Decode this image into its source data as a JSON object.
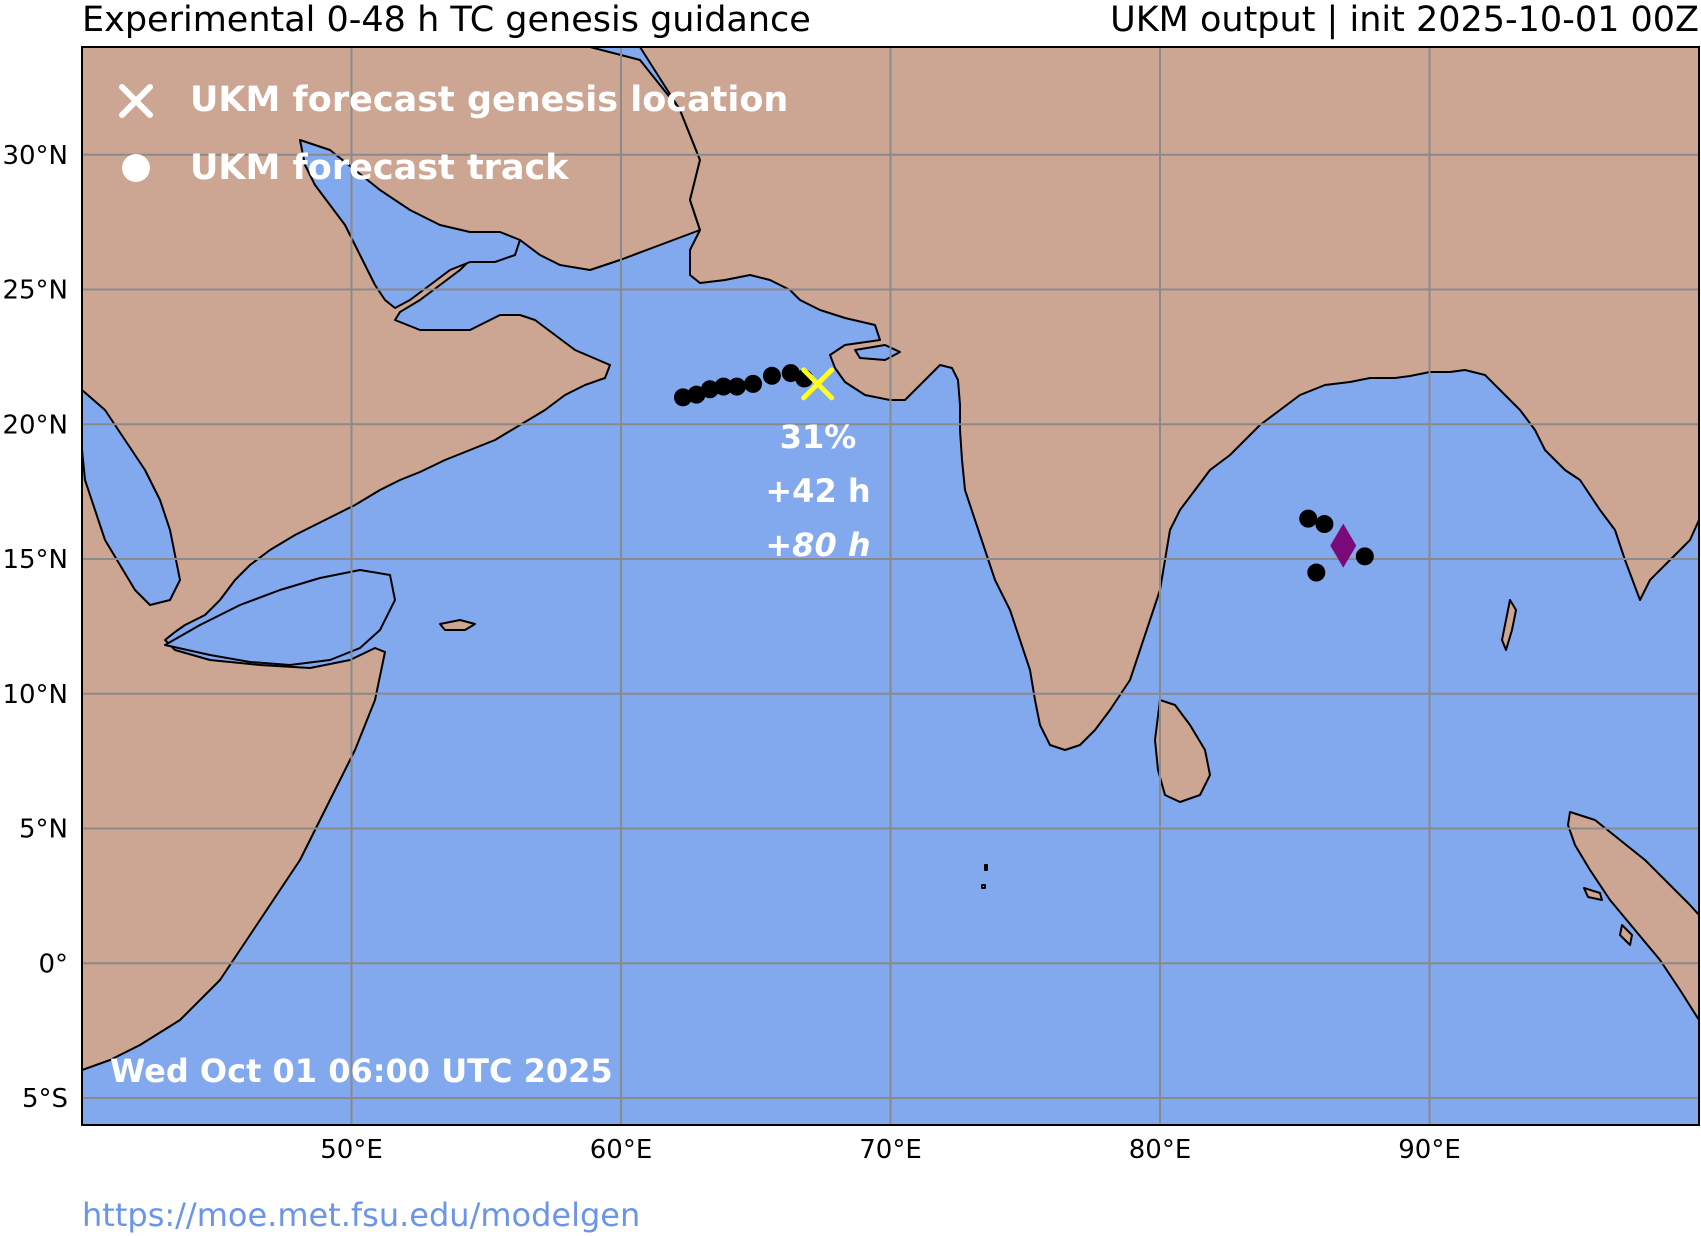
{
  "header": {
    "title_left": "Experimental 0-48 h TC genesis guidance",
    "title_right": "UKM output | init 2025-10-01 00Z"
  },
  "legend": {
    "genesis_label": "UKM forecast genesis location",
    "track_label": "UKM forecast track"
  },
  "timestamp": "Wed Oct 01 06:00 UTC 2025",
  "footer": {
    "url": "https://moe.met.fsu.edu/modelgen"
  },
  "annotation": {
    "probability": "31%",
    "genesis_time": "+42 h",
    "lead_time": "+80 h"
  },
  "colors": {
    "ocean": "#82a8ee",
    "land": "#cca593",
    "grid": "#8a8a8a",
    "genesis_marker": "#ffff1e",
    "track_marker": "#000000",
    "diamond_marker": "#7a0a7a",
    "legend_text": "#ffffff",
    "footer_link": "#6a95e8"
  },
  "axes": {
    "lon_ticks": [
      "50°E",
      "60°E",
      "70°E",
      "80°E",
      "90°E"
    ],
    "lat_ticks": [
      "30°N",
      "25°N",
      "20°N",
      "15°N",
      "10°N",
      "5°N",
      "0°",
      "5°S"
    ],
    "lon_range": [
      40,
      100
    ],
    "lat_range": [
      -6,
      34
    ]
  },
  "chart_data": {
    "type": "scatter",
    "series": [
      {
        "name": "UKM forecast track",
        "x": [
          62.3,
          62.8,
          63.3,
          63.8,
          64.3,
          64.9,
          65.6,
          66.3,
          66.8,
          85.5,
          86.1,
          85.8,
          87.6
        ],
        "y": [
          21.0,
          21.1,
          21.3,
          21.4,
          21.4,
          21.5,
          21.8,
          21.9,
          21.7,
          16.5,
          16.3,
          14.5,
          15.1
        ]
      },
      {
        "name": "UKM forecast genesis location",
        "x": [
          67.3
        ],
        "y": [
          21.5
        ]
      }
    ],
    "extra_markers": [
      {
        "marker": "diamond",
        "x": 86.8,
        "y": 15.5
      }
    ],
    "xlim": [
      40,
      100
    ],
    "ylim": [
      -6,
      34
    ]
  }
}
